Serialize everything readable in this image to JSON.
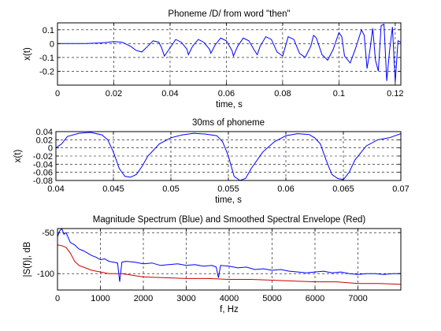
{
  "chart_data": [
    {
      "type": "line",
      "title": "Phoneme /D/ from word \"then\"",
      "xlabel": "time, s",
      "ylabel": "x(t)",
      "xlim": [
        0,
        0.122
      ],
      "ylim": [
        -0.3,
        0.15
      ],
      "xticks": [
        "0",
        "0.02",
        "0.04",
        "0.06",
        "0.08",
        "0.1",
        "0.12"
      ],
      "yticks": [
        "0.1",
        "0",
        "-0.1",
        "-0.2"
      ],
      "grid": true,
      "series": [
        {
          "color": "#0000ff",
          "x": [
            0,
            0.005,
            0.01,
            0.015,
            0.018,
            0.02,
            0.023,
            0.026,
            0.028,
            0.03,
            0.032,
            0.034,
            0.036,
            0.037,
            0.038,
            0.04,
            0.042,
            0.044,
            0.046,
            0.0465,
            0.048,
            0.05,
            0.052,
            0.054,
            0.0545,
            0.056,
            0.058,
            0.06,
            0.062,
            0.0625,
            0.064,
            0.066,
            0.068,
            0.07,
            0.071,
            0.072,
            0.074,
            0.076,
            0.078,
            0.08,
            0.081,
            0.082,
            0.084,
            0.086,
            0.088,
            0.09,
            0.091,
            0.092,
            0.094,
            0.096,
            0.098,
            0.1,
            0.101,
            0.102,
            0.104,
            0.106,
            0.108,
            0.109,
            0.11,
            0.111,
            0.112,
            0.113,
            0.114,
            0.115,
            0.116,
            0.117,
            0.118,
            0.119,
            0.12,
            0.121,
            0.122
          ],
          "y": [
            0,
            0,
            0,
            0.005,
            0.01,
            0.015,
            0.01,
            -0.02,
            -0.05,
            -0.06,
            -0.02,
            0.02,
            0.01,
            -0.03,
            -0.09,
            -0.03,
            0.03,
            0.01,
            -0.04,
            -0.08,
            -0.02,
            0.03,
            0.01,
            -0.04,
            -0.07,
            -0.01,
            0.04,
            0.02,
            -0.05,
            -0.09,
            -0.02,
            0.04,
            0.02,
            -0.05,
            -0.08,
            -0.02,
            0.05,
            0.03,
            -0.06,
            -0.09,
            -0.02,
            0.05,
            0.03,
            -0.07,
            -0.1,
            -0.02,
            0.06,
            0.04,
            -0.08,
            -0.12,
            -0.04,
            0.08,
            0.05,
            -0.09,
            -0.14,
            -0.03,
            0.1,
            0.06,
            -0.18,
            -0.05,
            0.11,
            -0.12,
            -0.2,
            0.13,
            0.14,
            -0.27,
            -0.05,
            0.12,
            -0.28,
            0.02,
            0.01
          ]
        }
      ]
    },
    {
      "type": "line",
      "title": "30ms of phoneme",
      "xlabel": "time, s",
      "ylabel": "x(t)",
      "xlim": [
        0.04,
        0.07
      ],
      "ylim": [
        -0.08,
        0.04
      ],
      "xticks": [
        "0.04",
        "0.045",
        "0.05",
        "0.055",
        "0.06",
        "0.065",
        "0.07"
      ],
      "yticks": [
        "0.04",
        "0.02",
        "0",
        "-0.02",
        "-0.04",
        "-0.06",
        "-0.08"
      ],
      "grid": true,
      "series": [
        {
          "color": "#0000ff",
          "x": [
            0.04,
            0.0405,
            0.041,
            0.042,
            0.043,
            0.044,
            0.0445,
            0.045,
            0.0455,
            0.046,
            0.0465,
            0.047,
            0.0475,
            0.048,
            0.049,
            0.05,
            0.051,
            0.052,
            0.053,
            0.054,
            0.0545,
            0.055,
            0.0555,
            0.056,
            0.0565,
            0.057,
            0.058,
            0.059,
            0.06,
            0.061,
            0.062,
            0.0625,
            0.063,
            0.0635,
            0.064,
            0.0645,
            0.065,
            0.0655,
            0.066,
            0.067,
            0.068,
            0.069,
            0.07
          ],
          "y": [
            0.0,
            0.01,
            0.028,
            0.036,
            0.038,
            0.032,
            0.02,
            -0.01,
            -0.05,
            -0.07,
            -0.072,
            -0.065,
            -0.045,
            -0.02,
            0.01,
            0.025,
            0.032,
            0.036,
            0.034,
            0.03,
            0.015,
            -0.02,
            -0.07,
            -0.08,
            -0.075,
            -0.05,
            -0.01,
            0.015,
            0.03,
            0.035,
            0.033,
            0.025,
            0.01,
            -0.03,
            -0.065,
            -0.075,
            -0.078,
            -0.06,
            -0.03,
            0.005,
            0.02,
            0.025,
            0.035
          ]
        }
      ]
    },
    {
      "type": "line",
      "title": "Magnitude Spectrum (Blue) and Smoothed Spectral Envelope (Red)",
      "xlabel": "f, Hz",
      "ylabel": "|S(f)|, dB",
      "xlim": [
        0,
        8000
      ],
      "ylim": [
        -120,
        -45
      ],
      "xticks": [
        "0",
        "1000",
        "2000",
        "3000",
        "4000",
        "5000",
        "6000",
        "7000"
      ],
      "yticks": [
        "-50",
        "-100"
      ],
      "grid": true,
      "series": [
        {
          "color": "#0000ff",
          "x": [
            0,
            50,
            100,
            150,
            200,
            300,
            400,
            500,
            600,
            700,
            800,
            900,
            1000,
            1100,
            1200,
            1300,
            1400,
            1450,
            1500,
            1600,
            1800,
            2000,
            2200,
            2400,
            2600,
            2800,
            3000,
            3200,
            3400,
            3600,
            3700,
            3750,
            3800,
            4000,
            4200,
            4400,
            4600,
            4800,
            5000,
            5200,
            5400,
            5600,
            5800,
            6000,
            6200,
            6400,
            6600,
            6800,
            7000,
            7200,
            7400,
            7600,
            7800,
            8000
          ],
          "y": [
            -55,
            -48,
            -45,
            -52,
            -50,
            -62,
            -65,
            -70,
            -72,
            -75,
            -78,
            -80,
            -83,
            -82,
            -85,
            -86,
            -87,
            -110,
            -86,
            -85,
            -86,
            -88,
            -87,
            -90,
            -89,
            -88,
            -90,
            -89,
            -91,
            -90,
            -92,
            -105,
            -90,
            -91,
            -93,
            -92,
            -95,
            -94,
            -96,
            -95,
            -97,
            -98,
            -99,
            -98,
            -97,
            -99,
            -98,
            -100,
            -101,
            -100,
            -100,
            -101,
            -100,
            -100
          ]
        },
        {
          "color": "#cc0000",
          "x": [
            0,
            100,
            200,
            300,
            400,
            500,
            600,
            800,
            1000,
            1200,
            1500,
            2000,
            2500,
            3000,
            3500,
            4000,
            4500,
            5000,
            5500,
            6000,
            6500,
            7000,
            7500,
            8000
          ],
          "y": [
            -65,
            -66,
            -68,
            -75,
            -85,
            -90,
            -92,
            -96,
            -98,
            -100,
            -100,
            -104,
            -105,
            -106,
            -106,
            -107,
            -107,
            -108,
            -109,
            -110,
            -110,
            -112,
            -112,
            -113
          ]
        }
      ]
    }
  ]
}
